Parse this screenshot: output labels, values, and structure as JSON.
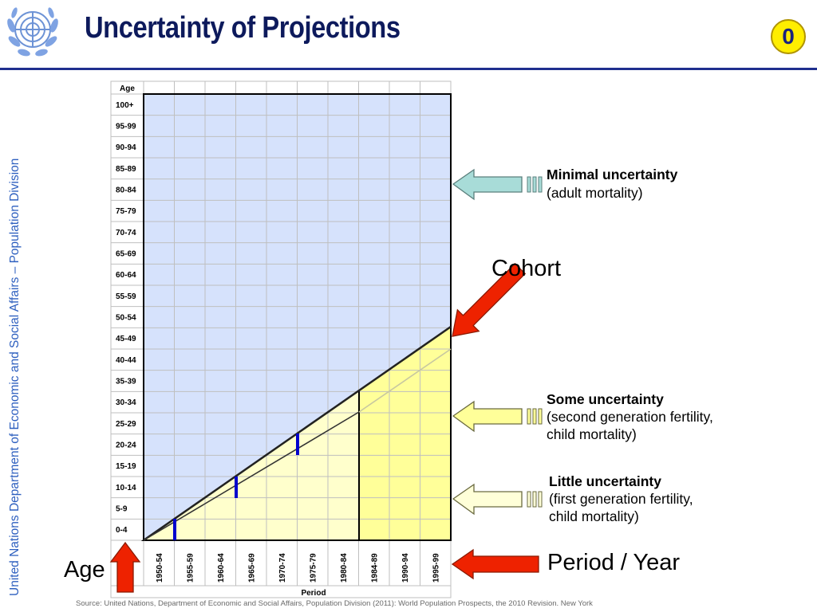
{
  "slide": {
    "title": "Uncertainty of Projections",
    "slide_number": "0",
    "side_text": "United Nations Department of Economic and Social Affairs – Population Division",
    "source": "Source: United Nations, Department of Economic and Social Affairs, Population Division (2011): World Population Prospects, the 2010 Revision. New York"
  },
  "diagram": {
    "age_header": "Age",
    "period_footer": "Period",
    "age_groups": [
      "0-4",
      "5-9",
      "10-14",
      "15-19",
      "20-24",
      "25-29",
      "30-34",
      "35-39",
      "40-44",
      "45-49",
      "50-54",
      "55-59",
      "60-64",
      "65-69",
      "70-74",
      "75-79",
      "80-84",
      "85-89",
      "90-94",
      "95-99",
      "100+"
    ],
    "periods": [
      "1950-54",
      "1955-59",
      "1960-64",
      "1965-69",
      "1970-74",
      "1975-79",
      "1980-84",
      "1984-89",
      "1990-94",
      "1995-99"
    ],
    "colors": {
      "upper": "#d6e2fc",
      "lower_light": "#ffffcc",
      "lower_dark": "#ffff99",
      "bar": "#0000cc"
    }
  },
  "annotations": {
    "minimal": {
      "title": "Minimal uncertainty",
      "detail": "(adult mortality)"
    },
    "cohort": "Cohort",
    "some": {
      "title": "Some uncertainty",
      "detail_1": "(second generation fertility,",
      "detail_2": "child mortality)"
    },
    "little": {
      "title": "Little uncertainty",
      "detail_1": "(first generation fertility,",
      "detail_2": "child mortality)"
    },
    "period_year": "Period / Year",
    "age": "Age"
  },
  "icons": {
    "logo": "un-emblem-icon",
    "arrow_colors": {
      "red": "#ee2200",
      "teal": "#a8dcd8",
      "yellow": "#ffff99",
      "cream": "#ffffd8"
    }
  }
}
